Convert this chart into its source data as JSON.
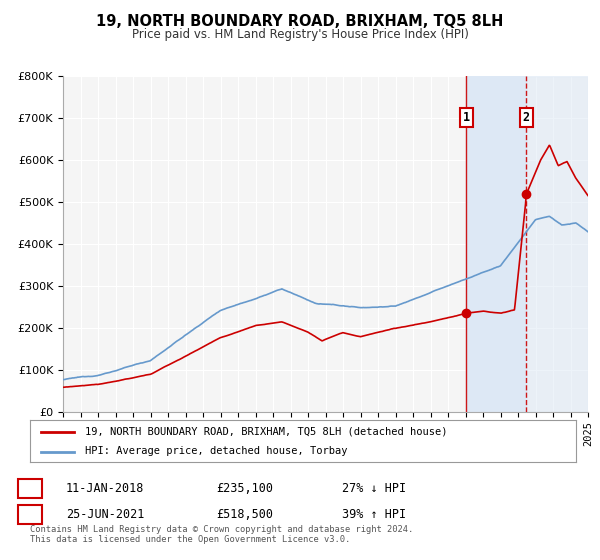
{
  "title": "19, NORTH BOUNDARY ROAD, BRIXHAM, TQ5 8LH",
  "subtitle": "Price paid vs. HM Land Registry's House Price Index (HPI)",
  "ylim": [
    0,
    800000
  ],
  "xlim": [
    1995,
    2025
  ],
  "yticks": [
    0,
    100000,
    200000,
    300000,
    400000,
    500000,
    600000,
    700000,
    800000
  ],
  "ytick_labels": [
    "£0",
    "£100K",
    "£200K",
    "£300K",
    "£400K",
    "£500K",
    "£600K",
    "£700K",
    "£800K"
  ],
  "sale1_date": 2018.03,
  "sale1_price": 235100,
  "sale1_label": "11-JAN-2018",
  "sale1_price_str": "£235,100",
  "sale1_pct": "27% ↓ HPI",
  "sale2_date": 2021.48,
  "sale2_price": 518500,
  "sale2_label": "25-JUN-2021",
  "sale2_price_str": "£518,500",
  "sale2_pct": "39% ↑ HPI",
  "house_color": "#cc0000",
  "hpi_color": "#6699cc",
  "background_color": "#ffffff",
  "plot_bg_color": "#f5f5f5",
  "grid_color": "#ffffff",
  "span_color": "#dde8f5",
  "legend_label_house": "19, NORTH BOUNDARY ROAD, BRIXHAM, TQ5 8LH (detached house)",
  "legend_label_hpi": "HPI: Average price, detached house, Torbay",
  "footnote": "Contains HM Land Registry data © Crown copyright and database right 2024.\nThis data is licensed under the Open Government Licence v3.0."
}
